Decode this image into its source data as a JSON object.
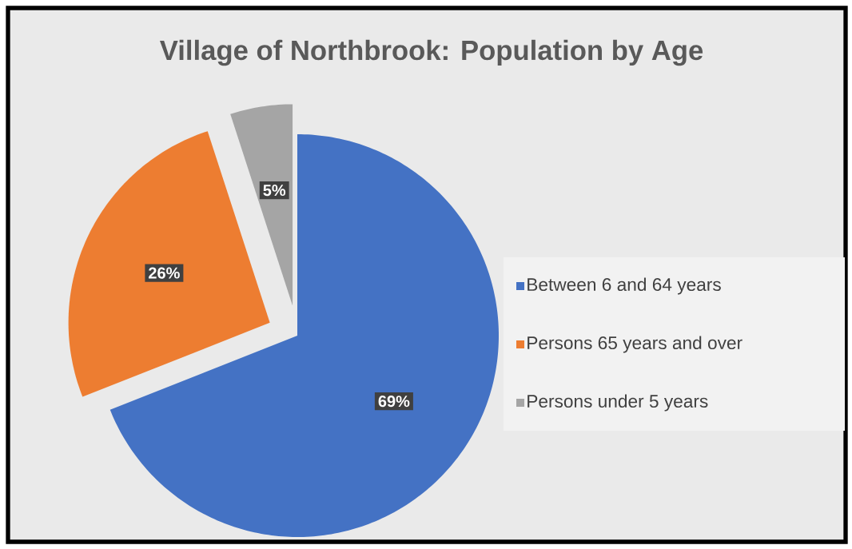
{
  "chart_data": {
    "type": "pie",
    "title": "Village of Northbrook:  Population by Age",
    "categories": [
      "Between 6 and 64 years",
      "Persons 65 years and over",
      "Persons under 5 years"
    ],
    "values": [
      69,
      26,
      5
    ],
    "colors": [
      "#4472c4",
      "#ed7d31",
      "#a5a5a5"
    ],
    "value_labels": [
      "69%",
      "26%",
      "5%"
    ],
    "legend": "right"
  }
}
